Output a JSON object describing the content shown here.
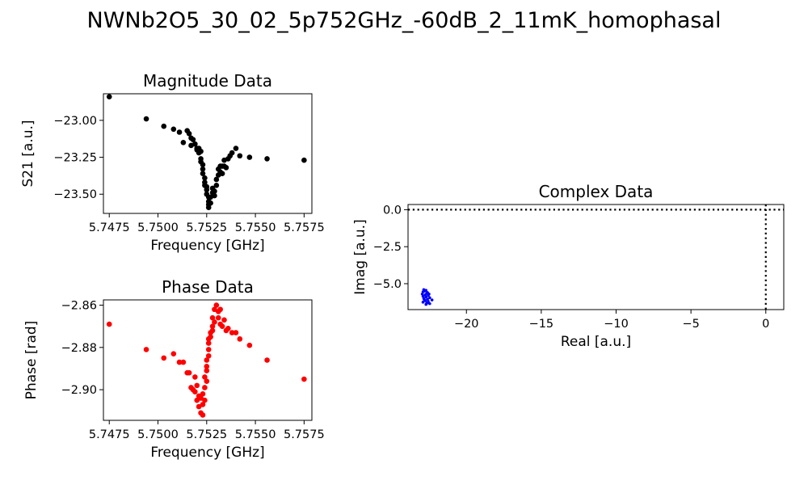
{
  "suptitle": "NWNb2O5_30_02_5p752GHz_-60dB_2_11mK_homophasal",
  "chart_data": [
    {
      "id": "magnitude",
      "type": "scatter",
      "title": "Magnitude Data",
      "xlabel": "Frequency [GHz]",
      "ylabel": "S21 [a.u.]",
      "xlim": [
        5.7472,
        5.7579
      ],
      "ylim": [
        -23.63,
        -22.82
      ],
      "xticks": [
        5.7475,
        5.75,
        5.7525,
        5.755,
        5.7575
      ],
      "xtick_labels": [
        "5.7475",
        "5.7500",
        "5.7525",
        "5.7550",
        "5.7575"
      ],
      "yticks": [
        -23.0,
        -23.25,
        -23.5
      ],
      "ytick_labels": [
        "−23.00",
        "−23.25",
        "−23.50"
      ],
      "grid": false,
      "series": [
        {
          "color": "#000000",
          "points": [
            [
              5.7475,
              -22.84
            ],
            [
              5.7494,
              -22.99
            ],
            [
              5.7503,
              -23.04
            ],
            [
              5.7508,
              -23.06
            ],
            [
              5.7511,
              -23.08
            ],
            [
              5.7513,
              -23.15
            ],
            [
              5.7515,
              -23.07
            ],
            [
              5.7516,
              -23.09
            ],
            [
              5.7517,
              -23.12
            ],
            [
              5.7517,
              -23.17
            ],
            [
              5.7518,
              -23.13
            ],
            [
              5.7519,
              -23.16
            ],
            [
              5.752,
              -23.19
            ],
            [
              5.752,
              -23.2
            ],
            [
              5.7521,
              -23.22
            ],
            [
              5.7521,
              -23.19
            ],
            [
              5.7522,
              -23.21
            ],
            [
              5.7522,
              -23.26
            ],
            [
              5.7522,
              -23.28
            ],
            [
              5.7523,
              -23.3
            ],
            [
              5.7523,
              -23.33
            ],
            [
              5.7523,
              -23.36
            ],
            [
              5.7524,
              -23.39
            ],
            [
              5.7524,
              -23.42
            ],
            [
              5.7524,
              -23.44
            ],
            [
              5.7525,
              -23.45
            ],
            [
              5.7525,
              -23.47
            ],
            [
              5.7525,
              -23.5
            ],
            [
              5.7526,
              -23.52
            ],
            [
              5.7526,
              -23.55
            ],
            [
              5.7526,
              -23.57
            ],
            [
              5.7526,
              -23.59
            ],
            [
              5.7527,
              -23.56
            ],
            [
              5.7527,
              -23.52
            ],
            [
              5.7528,
              -23.49
            ],
            [
              5.7528,
              -23.46
            ],
            [
              5.7529,
              -23.48
            ],
            [
              5.7529,
              -23.51
            ],
            [
              5.753,
              -23.44
            ],
            [
              5.753,
              -23.4
            ],
            [
              5.7531,
              -23.37
            ],
            [
              5.7531,
              -23.33
            ],
            [
              5.7532,
              -23.35
            ],
            [
              5.7532,
              -23.31
            ],
            [
              5.7533,
              -23.36
            ],
            [
              5.7533,
              -23.31
            ],
            [
              5.7534,
              -23.31
            ],
            [
              5.7534,
              -23.27
            ],
            [
              5.7535,
              -23.32
            ],
            [
              5.7536,
              -23.26
            ],
            [
              5.7537,
              -23.24
            ],
            [
              5.7538,
              -23.22
            ],
            [
              5.754,
              -23.19
            ],
            [
              5.7542,
              -23.24
            ],
            [
              5.7547,
              -23.25
            ],
            [
              5.7556,
              -23.26
            ],
            [
              5.7575,
              -23.27
            ]
          ]
        }
      ]
    },
    {
      "id": "phase",
      "type": "scatter",
      "title": "Phase Data",
      "xlabel": "Frequency [GHz]",
      "ylabel": "Phase [rad]",
      "xlim": [
        5.7472,
        5.7579
      ],
      "ylim": [
        -2.9145,
        -2.8575
      ],
      "xticks": [
        5.7475,
        5.75,
        5.7525,
        5.755,
        5.7575
      ],
      "xtick_labels": [
        "5.7475",
        "5.7500",
        "5.7525",
        "5.7550",
        "5.7575"
      ],
      "yticks": [
        -2.86,
        -2.88,
        -2.9
      ],
      "ytick_labels": [
        "−2.86",
        "−2.88",
        "−2.90"
      ],
      "grid": false,
      "series": [
        {
          "color": "#ff0000",
          "points": [
            [
              5.7475,
              -2.869
            ],
            [
              5.7494,
              -2.881
            ],
            [
              5.7503,
              -2.885
            ],
            [
              5.7508,
              -2.883
            ],
            [
              5.7511,
              -2.887
            ],
            [
              5.7513,
              -2.887
            ],
            [
              5.7515,
              -2.892
            ],
            [
              5.7516,
              -2.892
            ],
            [
              5.7517,
              -2.899
            ],
            [
              5.7518,
              -2.9
            ],
            [
              5.7519,
              -2.901
            ],
            [
              5.7519,
              -2.894
            ],
            [
              5.752,
              -2.905
            ],
            [
              5.752,
              -2.898
            ],
            [
              5.7521,
              -2.908
            ],
            [
              5.7521,
              -2.903
            ],
            [
              5.7522,
              -2.904
            ],
            [
              5.7522,
              -2.911
            ],
            [
              5.7523,
              -2.912
            ],
            [
              5.7523,
              -2.907
            ],
            [
              5.7523,
              -2.902
            ],
            [
              5.7524,
              -2.905
            ],
            [
              5.7524,
              -2.899
            ],
            [
              5.7524,
              -2.894
            ],
            [
              5.7525,
              -2.896
            ],
            [
              5.7525,
              -2.891
            ],
            [
              5.7525,
              -2.889
            ],
            [
              5.7525,
              -2.886
            ],
            [
              5.7526,
              -2.884
            ],
            [
              5.7526,
              -2.881
            ],
            [
              5.7526,
              -2.878
            ],
            [
              5.7526,
              -2.876
            ],
            [
              5.7527,
              -2.875
            ],
            [
              5.7527,
              -2.873
            ],
            [
              5.7528,
              -2.872
            ],
            [
              5.7528,
              -2.87
            ],
            [
              5.7528,
              -2.866
            ],
            [
              5.7529,
              -2.868
            ],
            [
              5.7529,
              -2.862
            ],
            [
              5.753,
              -2.86
            ],
            [
              5.7531,
              -2.863
            ],
            [
              5.7531,
              -2.866
            ],
            [
              5.7532,
              -2.862
            ],
            [
              5.7532,
              -2.869
            ],
            [
              5.7533,
              -2.87
            ],
            [
              5.7534,
              -2.867
            ],
            [
              5.7535,
              -2.872
            ],
            [
              5.7536,
              -2.871
            ],
            [
              5.7538,
              -2.873
            ],
            [
              5.754,
              -2.873
            ],
            [
              5.7542,
              -2.876
            ],
            [
              5.7547,
              -2.879
            ],
            [
              5.7556,
              -2.886
            ],
            [
              5.7575,
              -2.895
            ]
          ]
        }
      ]
    },
    {
      "id": "complex",
      "type": "scatter",
      "title": "Complex Data",
      "xlabel": "Real [a.u.]",
      "ylabel": "Imag [a.u.]",
      "xlim": [
        -23.9,
        1.2
      ],
      "ylim": [
        -6.75,
        0.35
      ],
      "xticks": [
        -20,
        -15,
        -10,
        -5,
        0
      ],
      "xtick_labels": [
        "−20",
        "−15",
        "−10",
        "−5",
        "0"
      ],
      "yticks": [
        0.0,
        -2.5,
        -5.0
      ],
      "ytick_labels": [
        "0.0",
        "−2.5",
        "−5.0"
      ],
      "grid": false,
      "reference_lines": {
        "x": 0,
        "y": 0,
        "style": "dotted",
        "color": "#000000"
      },
      "series": [
        {
          "color": "#0000ff",
          "points": [
            [
              -22.85,
              -5.4
            ],
            [
              -22.7,
              -5.45
            ],
            [
              -22.9,
              -5.55
            ],
            [
              -22.6,
              -5.6
            ],
            [
              -22.95,
              -5.7
            ],
            [
              -22.75,
              -5.75
            ],
            [
              -22.55,
              -5.8
            ],
            [
              -22.9,
              -5.85
            ],
            [
              -22.7,
              -5.9
            ],
            [
              -22.45,
              -5.95
            ],
            [
              -22.85,
              -6.0
            ],
            [
              -22.6,
              -6.05
            ],
            [
              -22.3,
              -6.1
            ],
            [
              -22.75,
              -6.15
            ],
            [
              -22.55,
              -6.2
            ],
            [
              -22.9,
              -6.25
            ],
            [
              -22.65,
              -6.3
            ],
            [
              -22.45,
              -6.35
            ],
            [
              -22.7,
              -6.4
            ],
            [
              -22.8,
              -5.5
            ],
            [
              -22.65,
              -5.65
            ],
            [
              -22.8,
              -6.1
            ],
            [
              -22.5,
              -5.7
            ],
            [
              -22.6,
              -6.3
            ]
          ]
        }
      ]
    }
  ]
}
